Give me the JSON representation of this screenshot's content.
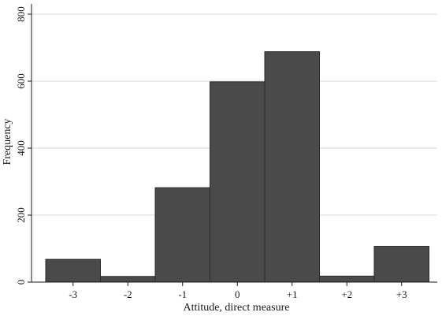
{
  "chart_data": {
    "type": "bar",
    "categories": [
      "-3",
      "-2",
      "-1",
      "0",
      "+1",
      "+2",
      "+3"
    ],
    "values": [
      68,
      17,
      282,
      598,
      688,
      18,
      107
    ],
    "xlabel": "Attitude, direct measure",
    "ylabel": "Frequency",
    "ylim": [
      0,
      800
    ],
    "yticks": [
      "0",
      "200",
      "400",
      "600",
      "800"
    ],
    "grid": true,
    "legend": "none",
    "bar_color": "#4a4a4a",
    "grid_color": "#d9d9d9",
    "axis_color": "#1a1a1a",
    "background": "#ffffff"
  }
}
